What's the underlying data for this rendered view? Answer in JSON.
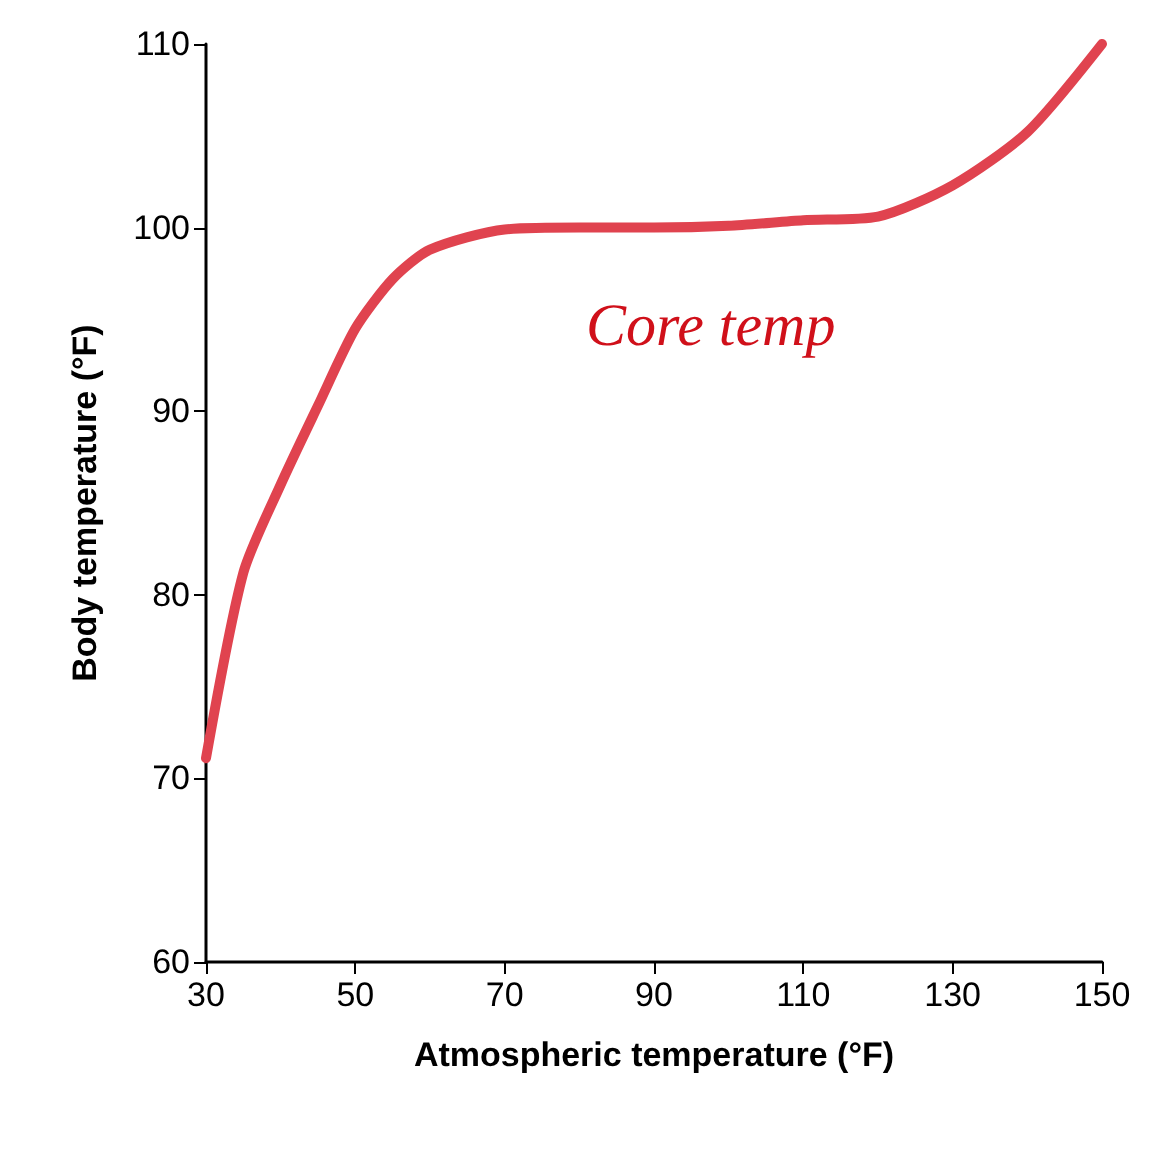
{
  "chart_data": {
    "type": "line",
    "xlabel": "Atmospheric temperature (°F)",
    "ylabel": "Body temperature (°F)",
    "x": [
      30,
      35,
      40,
      45,
      50,
      55,
      60,
      70,
      80,
      90,
      100,
      110,
      120,
      130,
      140,
      150
    ],
    "series": [
      {
        "color": "#e0434f",
        "values": [
          71.1,
          81.2,
          86,
          90.3,
          94.5,
          97.2,
          98.8,
          99.9,
          100,
          100,
          100.1,
          100.4,
          100.6,
          102.3,
          105.2,
          110
        ]
      }
    ],
    "xlim": [
      30,
      150
    ],
    "xticks": [
      30,
      50,
      70,
      90,
      110,
      130,
      150
    ],
    "ylim": [
      60,
      110
    ],
    "yticks": [
      60,
      70,
      80,
      90,
      100,
      110
    ],
    "grid": false,
    "marker": "none",
    "line_style": "solid",
    "annotations": [
      "Core temp"
    ]
  }
}
